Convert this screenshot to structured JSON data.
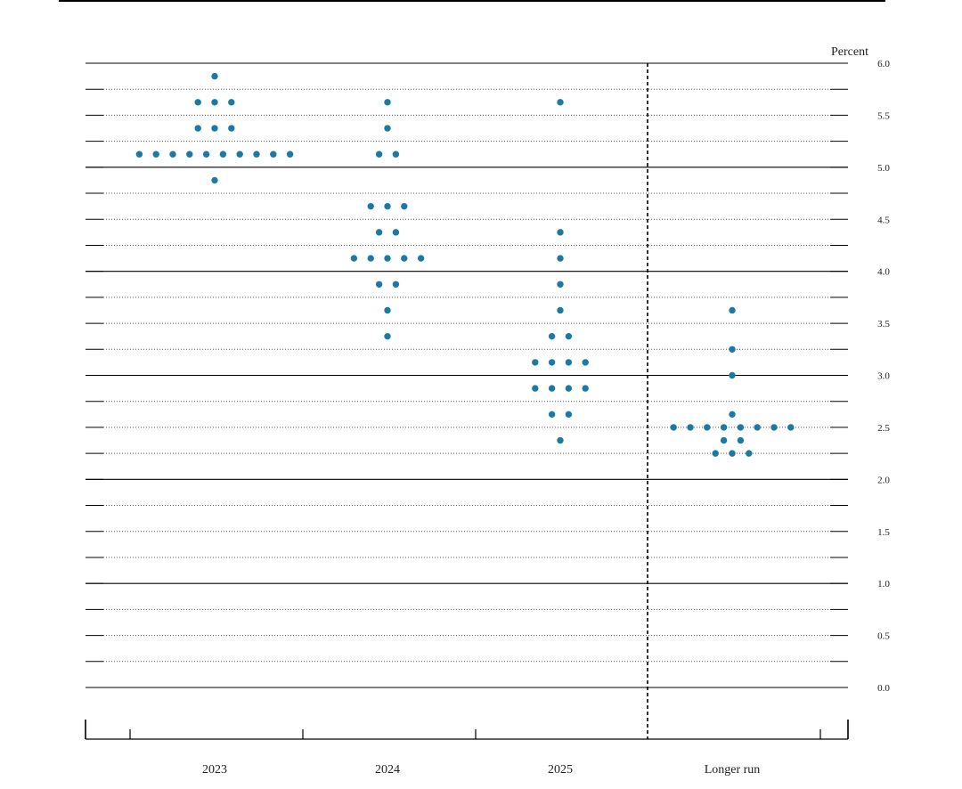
{
  "chart_data": {
    "type": "scatter",
    "subtype": "dot-plot",
    "unit_label": "Percent",
    "ylim": [
      0,
      6
    ],
    "y_ticks": [
      "6.0",
      "5.5",
      "5.0",
      "4.5",
      "4.0",
      "3.5",
      "3.0",
      "2.5",
      "2.0",
      "1.5",
      "1.0",
      "0.5",
      "0.0"
    ],
    "categories": [
      "2023",
      "2024",
      "2025",
      "Longer run"
    ],
    "colors": {
      "dot": "#1b7aa3",
      "grid_dotted": "#555555",
      "grid_solid": "#000000",
      "separator": "#000000"
    },
    "grid": "dotted every 0.25 percent; solid every 1.0 percent",
    "separator_before": "Longer run",
    "series": [
      {
        "category": "2023",
        "points": [
          {
            "y": 5.875,
            "count": 1
          },
          {
            "y": 5.625,
            "count": 3
          },
          {
            "y": 5.375,
            "count": 3
          },
          {
            "y": 5.125,
            "count": 10
          },
          {
            "y": 4.875,
            "count": 1
          }
        ]
      },
      {
        "category": "2024",
        "points": [
          {
            "y": 5.625,
            "count": 1
          },
          {
            "y": 5.375,
            "count": 1
          },
          {
            "y": 5.125,
            "count": 2
          },
          {
            "y": 4.625,
            "count": 3
          },
          {
            "y": 4.375,
            "count": 2
          },
          {
            "y": 4.125,
            "count": 5
          },
          {
            "y": 3.875,
            "count": 2
          },
          {
            "y": 3.625,
            "count": 1
          },
          {
            "y": 3.375,
            "count": 1
          }
        ]
      },
      {
        "category": "2025",
        "points": [
          {
            "y": 5.625,
            "count": 1
          },
          {
            "y": 4.375,
            "count": 1
          },
          {
            "y": 4.125,
            "count": 1
          },
          {
            "y": 3.875,
            "count": 1
          },
          {
            "y": 3.625,
            "count": 1
          },
          {
            "y": 3.375,
            "count": 2
          },
          {
            "y": 3.125,
            "count": 4
          },
          {
            "y": 2.875,
            "count": 4
          },
          {
            "y": 2.625,
            "count": 2
          },
          {
            "y": 2.375,
            "count": 1
          }
        ]
      },
      {
        "category": "Longer run",
        "points": [
          {
            "y": 3.625,
            "count": 1
          },
          {
            "y": 3.25,
            "count": 1
          },
          {
            "y": 3.0,
            "count": 1
          },
          {
            "y": 2.625,
            "count": 1
          },
          {
            "y": 2.5,
            "count": 8
          },
          {
            "y": 2.375,
            "count": 2
          },
          {
            "y": 2.25,
            "count": 3
          }
        ]
      }
    ]
  }
}
